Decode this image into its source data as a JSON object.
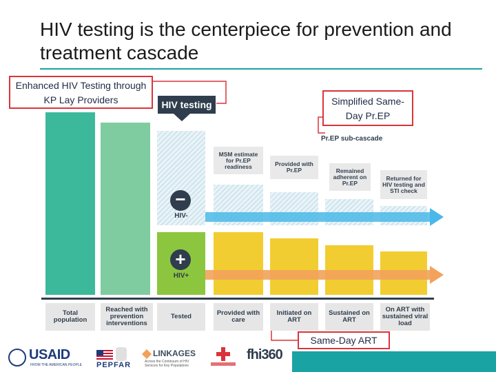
{
  "title": "HIV testing is the centerpiece for prevention and treatment cascade",
  "callouts": {
    "enhanced": "Enhanced HIV Testing through KP Lay Providers",
    "simplified": "Simplified Same-Day Pr.EP",
    "same_day_art": "Same-Day ART"
  },
  "hiv_testing_label": "HIV testing",
  "prep_subcascade_label": "Pr.EP sub-cascade",
  "hiv_neg_label": "HIV-",
  "hiv_pos_label": "HIV+",
  "prep_tags": [
    "MSM estimate for Pr.EP readiness",
    "Provided with Pr.EP",
    "Remained adherent on Pr.EP",
    "Returned for HIV testing and STI check"
  ],
  "categories": [
    "Total population",
    "Reached with prevention interventions",
    "Tested",
    "Provided with care",
    "Initiated on ART",
    "Sustained on ART",
    "On ART with sustained viral load"
  ],
  "colors": {
    "teal": "#3cb99b",
    "light_green": "#7fcca0",
    "hatch": "#cfe4ee",
    "green": "#8cc63e",
    "yellow": "#f2cd32",
    "arrow_blue": "#4ab8e8",
    "arrow_orange": "#f2a25a",
    "callout_border": "#d9343b",
    "rule": "#1aa3a3"
  },
  "logos": {
    "usaid": "USAID",
    "usaid_sub": "FROM THE AMERICAN PEOPLE",
    "pepfar": "PEPFAR",
    "linkages": "LINKAGES",
    "linkages_sub": "Across the Continuum of HIV Services for Key Populations",
    "fhi": "fhi360"
  }
}
